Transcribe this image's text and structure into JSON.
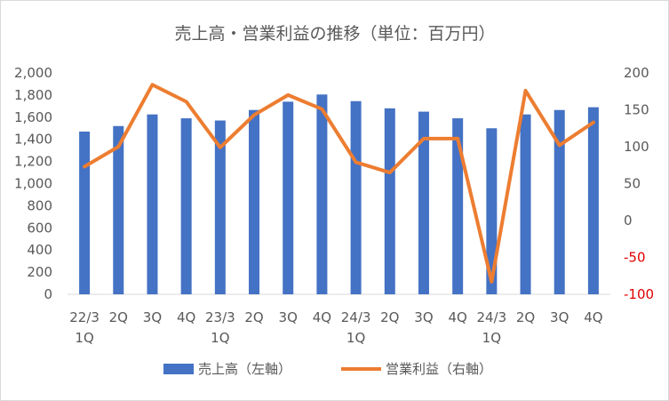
{
  "chart_data": {
    "type": "bar+line",
    "title": "売上高・営業利益の推移（単位：百万円）",
    "categories": [
      [
        "22/3",
        "1Q"
      ],
      [
        "2Q"
      ],
      [
        "3Q"
      ],
      [
        "4Q"
      ],
      [
        "23/3",
        "1Q"
      ],
      [
        "2Q"
      ],
      [
        "3Q"
      ],
      [
        "4Q"
      ],
      [
        "24/3",
        "1Q"
      ],
      [
        "2Q"
      ],
      [
        "3Q"
      ],
      [
        "4Q"
      ],
      [
        "24/3",
        "1Q"
      ],
      [
        "2Q"
      ],
      [
        "3Q"
      ],
      [
        "4Q"
      ]
    ],
    "series": [
      {
        "name": "売上高（左軸）",
        "type": "bar",
        "axis": "left",
        "color": "#4472c4",
        "values": [
          1470,
          1520,
          1625,
          1590,
          1570,
          1665,
          1740,
          1805,
          1745,
          1680,
          1650,
          1590,
          1500,
          1625,
          1665,
          1690
        ]
      },
      {
        "name": "営業利益（右軸）",
        "type": "line",
        "axis": "right",
        "color": "#ed7d31",
        "values": [
          73,
          100,
          184,
          161,
          99,
          143,
          170,
          151,
          79,
          65,
          111,
          111,
          -83,
          176,
          102,
          133
        ]
      }
    ],
    "y_left": {
      "range": [
        0,
        2000
      ],
      "ticks": [
        "2,000",
        "1,800",
        "1,600",
        "1,400",
        "1,200",
        "1,000",
        "800",
        "600",
        "400",
        "200",
        "0"
      ]
    },
    "y_right": {
      "range": [
        -100,
        200
      ],
      "ticks": [
        "200",
        "150",
        "100",
        "50",
        "0",
        "-50",
        "-100"
      ],
      "negative_color": "#e00000"
    },
    "grid": false,
    "legend_position": "bottom"
  }
}
